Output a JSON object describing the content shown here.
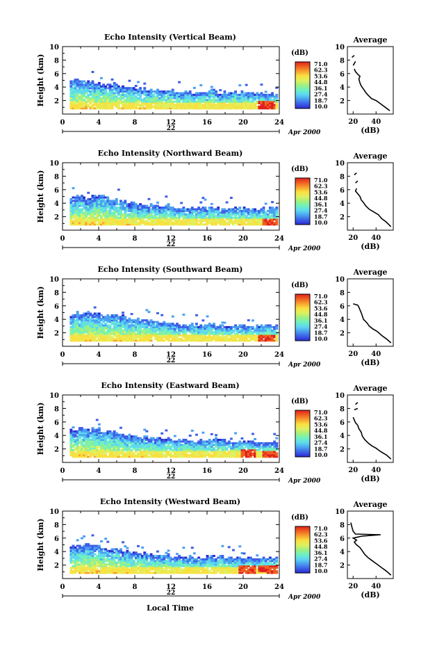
{
  "figure": {
    "x_label": "Local Time",
    "date_label": "Apr 2000",
    "day_label": "22",
    "colorbar_unit": "(dB)",
    "colorbar_ticks": [
      "71.0",
      "62.3",
      "53.6",
      "44.8",
      "36.1",
      "27.4",
      "18.7",
      "10.0"
    ],
    "colorscale": [
      "#2a2ad0",
      "#3d5fe8",
      "#4aa0f0",
      "#5fd8f0",
      "#70f0c0",
      "#a0f080",
      "#e0f060",
      "#f8e040",
      "#f8a030",
      "#f06020",
      "#e02020"
    ]
  },
  "chart_data": [
    {
      "type": "heatmap",
      "title": "Echo Intensity (Vertical Beam)",
      "ylabel": "Height (km)",
      "xlim": [
        0,
        24
      ],
      "ylim": [
        0,
        10
      ],
      "xticks": [
        0,
        4,
        8,
        12,
        16,
        20,
        24
      ],
      "yticks": [
        2,
        4,
        6,
        8,
        10
      ],
      "top": [
        4.7,
        5.0,
        4.8,
        4.6,
        4.2,
        4.4,
        4.0,
        3.9,
        3.7,
        3.5,
        3.4,
        3.5,
        3.3,
        3.2,
        3.1,
        3.2,
        3.3,
        3.1,
        3.0,
        3.1,
        3.0,
        2.9,
        3.0,
        3.0
      ],
      "hot_spots": [
        [
          22.5,
          1.2
        ]
      ],
      "average": {
        "title": "Average",
        "xlabel": "(dB)",
        "xlim": [
          15,
          55
        ],
        "ylim": [
          0,
          10
        ],
        "xticks": [
          20,
          40
        ],
        "yticks": [
          2,
          4,
          6,
          8,
          10
        ],
        "profile": [
          [
            52,
            0.5
          ],
          [
            48,
            1.0
          ],
          [
            44,
            1.5
          ],
          [
            40,
            2.0
          ],
          [
            36,
            2.3
          ],
          [
            33,
            2.8
          ],
          [
            31,
            3.2
          ],
          [
            29,
            3.7
          ],
          [
            27,
            4.2
          ],
          [
            26,
            4.6
          ],
          [
            25,
            5.2
          ],
          [
            26,
            5.6
          ],
          [
            24,
            5.9
          ],
          [
            22,
            6.3
          ],
          [
            21,
            6.7
          ]
        ],
        "fragments": [
          [
            [
              20,
              7.2
            ],
            [
              22,
              7.8
            ]
          ],
          [
            [
              19,
              8.4
            ],
            [
              21,
              8.7
            ]
          ]
        ]
      }
    },
    {
      "type": "heatmap",
      "title": "Echo Intensity (Northward Beam)",
      "ylabel": "Height (km)",
      "xlim": [
        0,
        24
      ],
      "ylim": [
        0,
        10
      ],
      "xticks": [
        0,
        4,
        8,
        12,
        16,
        20,
        24
      ],
      "yticks": [
        2,
        4,
        6,
        8,
        10
      ],
      "top": [
        4.8,
        5.0,
        4.7,
        4.9,
        5.0,
        4.5,
        4.2,
        4.0,
        3.8,
        3.6,
        3.5,
        3.6,
        3.4,
        3.2,
        3.2,
        3.3,
        3.3,
        3.2,
        3.1,
        3.2,
        3.0,
        3.0,
        3.1,
        3.2
      ],
      "hot_spots": [
        [
          22.8,
          1.0
        ]
      ],
      "average": {
        "title": "Average",
        "xlabel": "(dB)",
        "xlim": [
          15,
          55
        ],
        "ylim": [
          0,
          10
        ],
        "xticks": [
          20,
          40
        ],
        "yticks": [
          2,
          4,
          6,
          8,
          10
        ],
        "profile": [
          [
            53,
            0.5
          ],
          [
            49,
            1.2
          ],
          [
            45,
            1.7
          ],
          [
            42,
            2.3
          ],
          [
            38,
            2.7
          ],
          [
            34,
            3.1
          ],
          [
            31,
            3.6
          ],
          [
            29,
            4.1
          ],
          [
            27,
            4.5
          ],
          [
            26,
            5.0
          ],
          [
            24,
            5.4
          ],
          [
            22,
            5.8
          ],
          [
            23,
            6.2
          ]
        ],
        "fragments": [
          [
            [
              22,
              7.0
            ],
            [
              24,
              7.3
            ]
          ],
          [
            [
              21,
              8.2
            ],
            [
              23,
              8.5
            ]
          ]
        ]
      }
    },
    {
      "type": "heatmap",
      "title": "Echo Intensity (Southward Beam)",
      "ylabel": "Height (km)",
      "xlim": [
        0,
        24
      ],
      "ylim": [
        0,
        10
      ],
      "xticks": [
        0,
        4,
        8,
        12,
        16,
        20,
        24
      ],
      "yticks": [
        2,
        4,
        6,
        8,
        10
      ],
      "top": [
        4.5,
        4.8,
        5.0,
        4.7,
        4.4,
        4.6,
        4.3,
        4.0,
        3.9,
        3.7,
        3.5,
        3.4,
        3.3,
        3.2,
        3.2,
        3.1,
        3.2,
        3.1,
        3.0,
        3.1,
        2.9,
        3.0,
        3.0,
        3.1
      ],
      "hot_spots": [
        [
          22.5,
          1.1
        ]
      ],
      "average": {
        "title": "Average",
        "xlabel": "(dB)",
        "xlim": [
          15,
          55
        ],
        "ylim": [
          0,
          10
        ],
        "xticks": [
          20,
          40
        ],
        "yticks": [
          2,
          4,
          6,
          8,
          10
        ],
        "profile": [
          [
            53,
            0.5
          ],
          [
            49,
            1.1
          ],
          [
            45,
            1.6
          ],
          [
            41,
            2.2
          ],
          [
            37,
            2.6
          ],
          [
            34,
            3.0
          ],
          [
            32,
            3.5
          ],
          [
            29,
            4.0
          ],
          [
            28,
            4.5
          ],
          [
            27,
            5.0
          ],
          [
            26,
            5.4
          ],
          [
            25,
            5.8
          ],
          [
            24,
            6.1
          ],
          [
            22,
            6.2
          ],
          [
            20,
            6.3
          ]
        ],
        "fragments": []
      }
    },
    {
      "type": "heatmap",
      "title": "Echo Intensity (Eastward Beam)",
      "ylabel": "Height (km)",
      "xlim": [
        0,
        24
      ],
      "ylim": [
        0,
        10
      ],
      "xticks": [
        0,
        4,
        8,
        12,
        16,
        20,
        24
      ],
      "yticks": [
        2,
        4,
        6,
        8,
        10
      ],
      "top": [
        4.6,
        4.9,
        5.0,
        4.8,
        4.5,
        4.6,
        4.2,
        4.0,
        3.8,
        3.6,
        3.4,
        3.5,
        3.3,
        3.2,
        3.1,
        3.2,
        3.3,
        3.2,
        3.0,
        3.1,
        3.0,
        2.9,
        3.0,
        3.0
      ],
      "hot_spots": [
        [
          20.5,
          1.2
        ],
        [
          23.0,
          1.1
        ]
      ],
      "average": {
        "title": "Average",
        "xlabel": "(dB)",
        "xlim": [
          15,
          55
        ],
        "ylim": [
          0,
          10
        ],
        "xticks": [
          20,
          40
        ],
        "yticks": [
          2,
          4,
          6,
          8,
          10
        ],
        "profile": [
          [
            53,
            0.5
          ],
          [
            49,
            1.1
          ],
          [
            44,
            1.6
          ],
          [
            40,
            2.1
          ],
          [
            36,
            2.5
          ],
          [
            33,
            2.9
          ],
          [
            30,
            3.4
          ],
          [
            28,
            3.9
          ],
          [
            27,
            4.5
          ],
          [
            25,
            5.0
          ],
          [
            24,
            5.5
          ],
          [
            22,
            5.9
          ],
          [
            21,
            6.3
          ],
          [
            20,
            6.7
          ]
        ],
        "fragments": [
          [
            [
              21,
              7.8
            ],
            [
              24,
              8.0
            ]
          ],
          [
            [
              22,
              8.6
            ],
            [
              24,
              8.9
            ]
          ]
        ]
      }
    },
    {
      "type": "heatmap",
      "title": "Echo Intensity (Westward Beam)",
      "ylabel": "Height (km)",
      "xlim": [
        0,
        24
      ],
      "ylim": [
        0,
        10
      ],
      "xticks": [
        0,
        4,
        8,
        12,
        16,
        20,
        24
      ],
      "yticks": [
        2,
        4,
        6,
        8,
        10
      ],
      "top": [
        4.5,
        4.8,
        5.0,
        4.9,
        4.5,
        4.4,
        4.1,
        3.9,
        3.7,
        3.5,
        3.3,
        3.4,
        3.2,
        3.1,
        3.0,
        3.1,
        3.2,
        3.1,
        3.0,
        3.0,
        2.9,
        3.0,
        3.1,
        3.1
      ],
      "hot_spots": [
        [
          20.3,
          1.3
        ],
        [
          22.5,
          1.4
        ],
        [
          23.5,
          1.2
        ]
      ],
      "average": {
        "title": "Average",
        "xlabel": "(dB)",
        "xlim": [
          15,
          55
        ],
        "ylim": [
          0,
          10
        ],
        "xticks": [
          20,
          40
        ],
        "yticks": [
          2,
          4,
          6,
          8,
          10
        ],
        "profile": [
          [
            53,
            0.5
          ],
          [
            49,
            1.1
          ],
          [
            45,
            1.6
          ],
          [
            41,
            2.1
          ],
          [
            37,
            2.6
          ],
          [
            33,
            3.1
          ],
          [
            30,
            3.6
          ],
          [
            28,
            4.1
          ],
          [
            26,
            4.6
          ],
          [
            23,
            5.0
          ],
          [
            21,
            5.4
          ],
          [
            23,
            5.7
          ],
          [
            20,
            6.0
          ],
          [
            28,
            6.3
          ],
          [
            44,
            6.5
          ],
          [
            22,
            6.6
          ],
          [
            20,
            7.0
          ],
          [
            19,
            7.6
          ],
          [
            18,
            8.3
          ]
        ],
        "fragments": []
      }
    }
  ]
}
